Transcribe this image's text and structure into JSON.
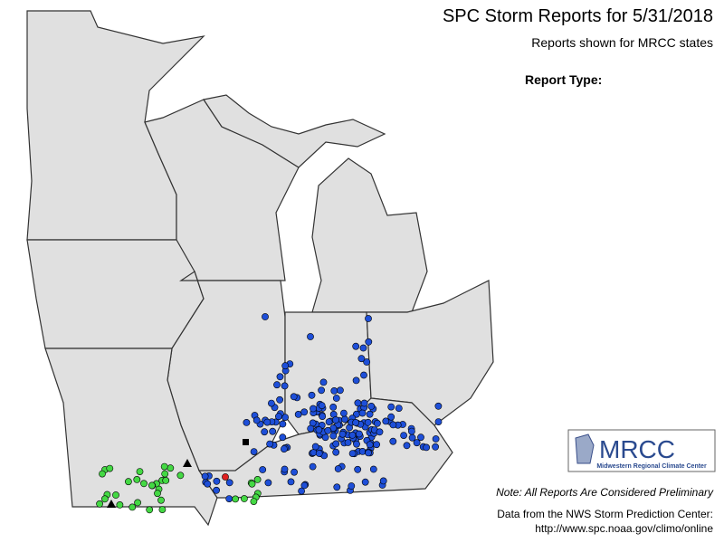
{
  "header": {
    "title": "SPC Storm Reports for 5/31/2018",
    "subtitle": "Reports shown for MRCC states"
  },
  "legend": {
    "label": "Report Type:"
  },
  "logo": {
    "name": "MRCC",
    "full_name": "Midwestern Regional Climate Center"
  },
  "footer": {
    "note": "Note: All Reports Are Considered Preliminary",
    "source": "Data from the NWS Storm Prediction Center:",
    "url": "http://www.spc.noaa.gov/climo/online"
  }
}
